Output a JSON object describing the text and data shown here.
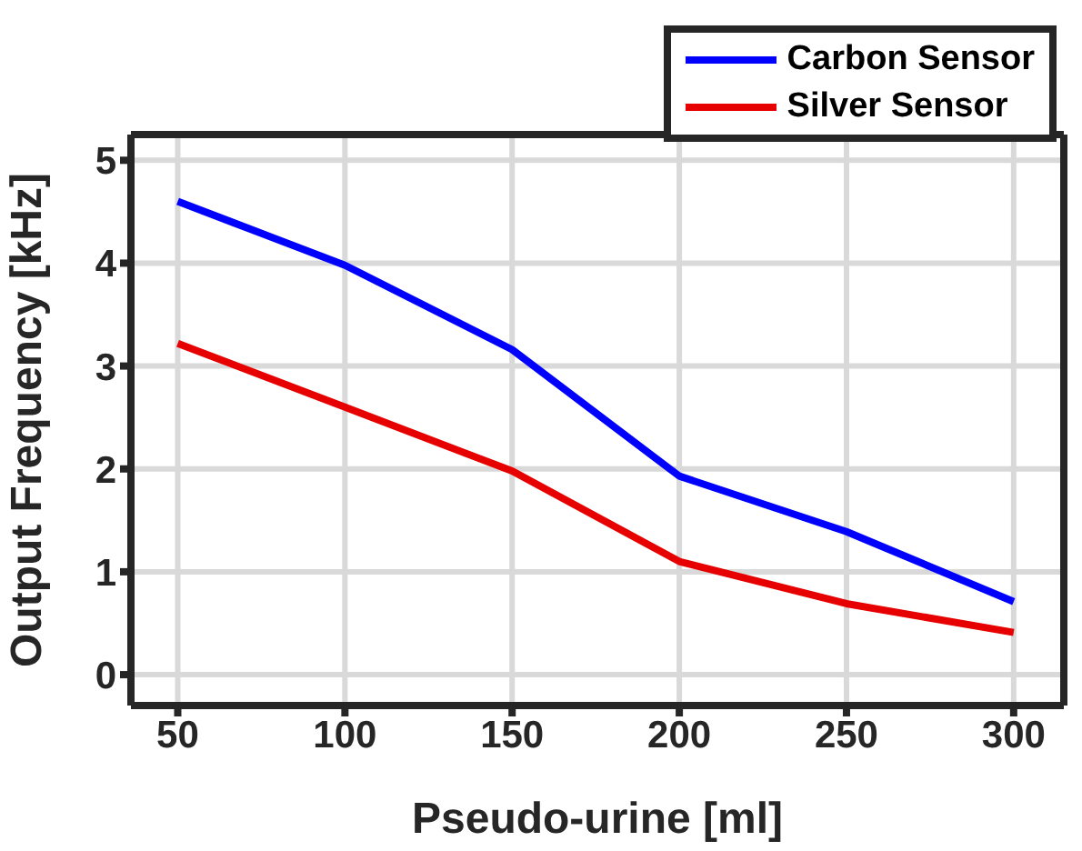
{
  "chart_data": {
    "type": "line",
    "xlabel": "Pseudo-urine [ml]",
    "ylabel": "Output Frequency [kHz]",
    "x": [
      50,
      100,
      150,
      200,
      250,
      300
    ],
    "series": [
      {
        "name": "Carbon Sensor",
        "color": "#0000ff",
        "values": [
          4.6,
          3.98,
          3.16,
          1.93,
          1.39,
          0.71
        ]
      },
      {
        "name": "Silver Sensor",
        "color": "#e60000",
        "values": [
          3.22,
          2.6,
          1.98,
          1.1,
          0.69,
          0.41
        ]
      }
    ],
    "xlim": [
      36,
      315
    ],
    "xticks": [
      50,
      100,
      150,
      200,
      250,
      300
    ],
    "ylim": [
      -0.3,
      5.25
    ],
    "yticks": [
      0,
      1,
      2,
      3,
      4,
      5
    ],
    "grid": true,
    "legend": "top right",
    "marker": "none",
    "line_style": "solid"
  }
}
